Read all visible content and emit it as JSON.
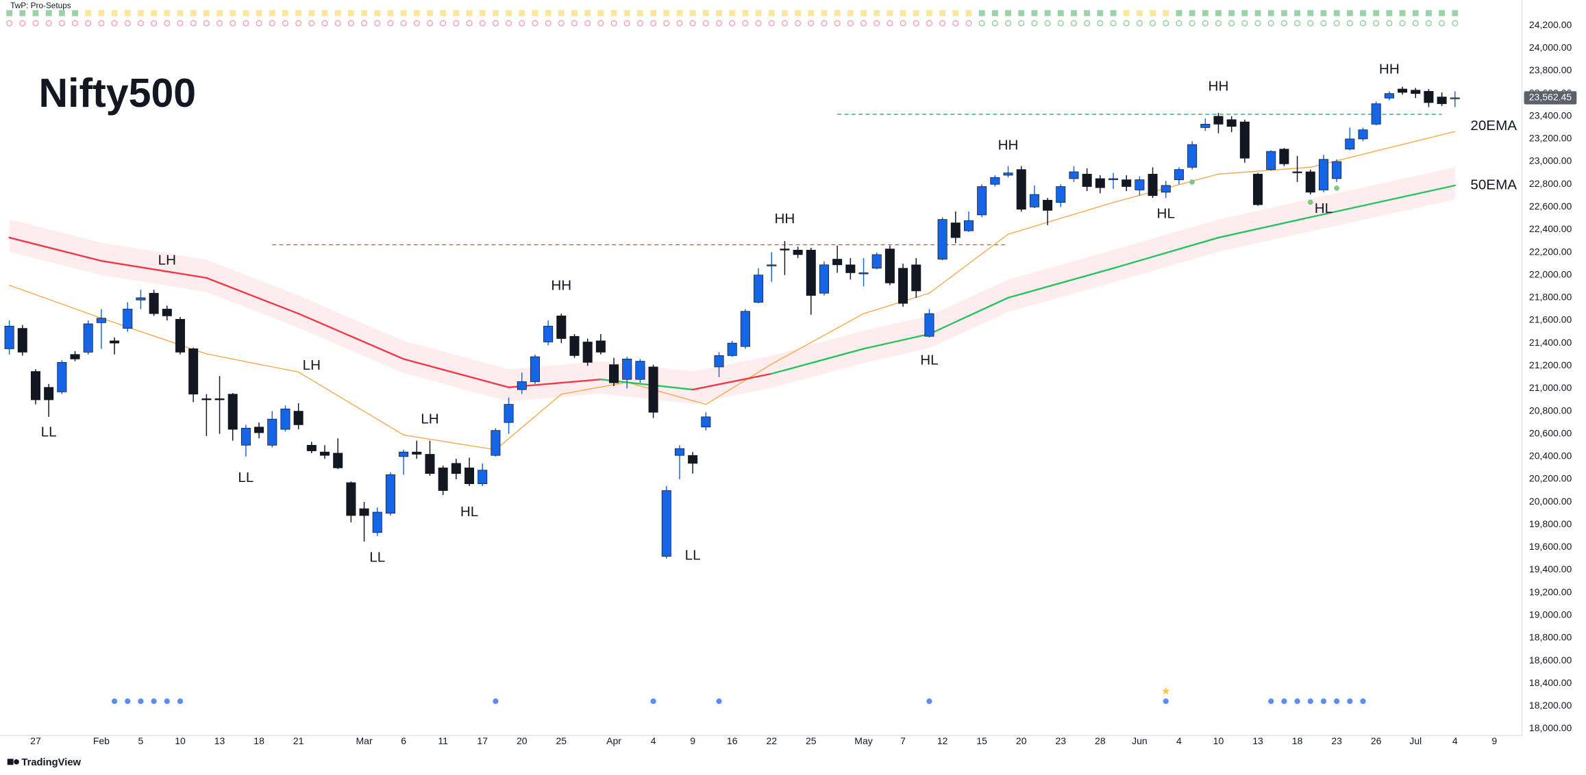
{
  "chart_data": {
    "type": "candlestick",
    "title": "Nifty500",
    "indicator": "TwP: Pro-Setups",
    "footer": "TradingView",
    "up_color": "#1565e6",
    "down_color": "#131722",
    "grid": false,
    "xlim": [
      -0.15,
      115.1
    ],
    "ylim": [
      17940,
      24300
    ],
    "xticks": [
      {
        "value": 2,
        "label": "27"
      },
      {
        "value": 7,
        "label": "Feb"
      },
      {
        "value": 10,
        "label": "5"
      },
      {
        "value": 13,
        "label": "10"
      },
      {
        "value": 16,
        "label": "13"
      },
      {
        "value": 19,
        "label": "18"
      },
      {
        "value": 22,
        "label": "21"
      },
      {
        "value": 27,
        "label": "Mar"
      },
      {
        "value": 30,
        "label": "6"
      },
      {
        "value": 33,
        "label": "11"
      },
      {
        "value": 36,
        "label": "17"
      },
      {
        "value": 39,
        "label": "20"
      },
      {
        "value": 42,
        "label": "25"
      },
      {
        "value": 46,
        "label": "Apr"
      },
      {
        "value": 49,
        "label": "4"
      },
      {
        "value": 52,
        "label": "9"
      },
      {
        "value": 55,
        "label": "16"
      },
      {
        "value": 58,
        "label": "22"
      },
      {
        "value": 61,
        "label": "25"
      },
      {
        "value": 65,
        "label": "May"
      },
      {
        "value": 68,
        "label": "7"
      },
      {
        "value": 71,
        "label": "12"
      },
      {
        "value": 74,
        "label": "15"
      },
      {
        "value": 77,
        "label": "20"
      },
      {
        "value": 80,
        "label": "23"
      },
      {
        "value": 83,
        "label": "28"
      },
      {
        "value": 86,
        "label": "Jun"
      },
      {
        "value": 89,
        "label": "4"
      },
      {
        "value": 92,
        "label": "10"
      },
      {
        "value": 95,
        "label": "13"
      },
      {
        "value": 98,
        "label": "18"
      },
      {
        "value": 101,
        "label": "23"
      },
      {
        "value": 104,
        "label": "26"
      },
      {
        "value": 107,
        "label": "Jul"
      },
      {
        "value": 110,
        "label": "4"
      },
      {
        "value": 113,
        "label": "9"
      }
    ],
    "yticks": [
      {
        "value": 18000,
        "label": "18,000.00"
      },
      {
        "value": 18200,
        "label": "18,200.00"
      },
      {
        "value": 18400,
        "label": "18,400.00"
      },
      {
        "value": 18600,
        "label": "18,600.00"
      },
      {
        "value": 18800,
        "label": "18,800.00"
      },
      {
        "value": 19000,
        "label": "19,000.00"
      },
      {
        "value": 19200,
        "label": "19,200.00"
      },
      {
        "value": 19400,
        "label": "19,400.00"
      },
      {
        "value": 19600,
        "label": "19,600.00"
      },
      {
        "value": 19800,
        "label": "19,800.00"
      },
      {
        "value": 20000,
        "label": "20,000.00"
      },
      {
        "value": 20200,
        "label": "20,200.00"
      },
      {
        "value": 20400,
        "label": "20,400.00"
      },
      {
        "value": 20600,
        "label": "20,600.00"
      },
      {
        "value": 20800,
        "label": "20,800.00"
      },
      {
        "value": 21000,
        "label": "21,000.00"
      },
      {
        "value": 21200,
        "label": "21,200.00"
      },
      {
        "value": 21400,
        "label": "21,400.00"
      },
      {
        "value": 21600,
        "label": "21,600.00"
      },
      {
        "value": 21800,
        "label": "21,800.00"
      },
      {
        "value": 22000,
        "label": "22,000.00"
      },
      {
        "value": 22200,
        "label": "22,200.00"
      },
      {
        "value": 22400,
        "label": "22,400.00"
      },
      {
        "value": 22600,
        "label": "22,600.00"
      },
      {
        "value": 22800,
        "label": "22,800.00"
      },
      {
        "value": 23000,
        "label": "23,000.00"
      },
      {
        "value": 23200,
        "label": "23,200.00"
      },
      {
        "value": 23400,
        "label": "23,400.00"
      },
      {
        "value": 23600,
        "label": "23,600.00"
      },
      {
        "value": 23800,
        "label": "23,800.00"
      },
      {
        "value": 24000,
        "label": "24,000.00"
      },
      {
        "value": 24200,
        "label": "24,200.00"
      }
    ],
    "open": [
      21350,
      21530,
      21150,
      21010,
      20970,
      21300,
      21320,
      21580,
      21420,
      21530,
      21780,
      21840,
      21700,
      21610,
      21350,
      20910,
      20910,
      20950,
      20500,
      20660,
      20500,
      20640,
      20800,
      20500,
      20440,
      20430,
      20170,
      19940,
      19730,
      19900,
      20400,
      20440,
      20420,
      20300,
      20340,
      20300,
      20160,
      20410,
      20700,
      20990,
      21060,
      21410,
      21640,
      21460,
      21410,
      21420,
      21210,
      21080,
      21080,
      21190,
      19520,
      20410,
      20410,
      20660,
      21190,
      21290,
      21370,
      21760,
      22080,
      22230,
      22220,
      22220,
      21840,
      22140,
      22090,
      22010,
      22060,
      22230,
      22060,
      22090,
      21460,
      22140,
      22460,
      22390,
      22530,
      22800,
      22880,
      22930,
      22600,
      22660,
      22640,
      22850,
      22890,
      22850,
      22840,
      22840,
      22750,
      22890,
      22730,
      22840,
      22950,
      23300,
      23400,
      23370,
      23350,
      22890,
      22930,
      23110,
      22910,
      22910,
      22750,
      22850,
      23110,
      23200,
      23330,
      23560,
      23640,
      23630,
      23620,
      23570,
      23560
    ],
    "high": [
      21600,
      21560,
      21170,
      21040,
      21250,
      21330,
      21600,
      21700,
      21450,
      21760,
      21870,
      21870,
      21730,
      21630,
      21360,
      20950,
      21110,
      20960,
      20680,
      20700,
      20800,
      20850,
      20870,
      20530,
      20500,
      20560,
      20180,
      20000,
      19950,
      20260,
      20460,
      20540,
      20540,
      20320,
      20380,
      20390,
      20340,
      20650,
      20920,
      21140,
      21300,
      21600,
      21660,
      21480,
      21440,
      21480,
      21270,
      21280,
      21260,
      21210,
      20140,
      20500,
      20440,
      20790,
      21320,
      21420,
      21700,
      22060,
      22200,
      22300,
      22250,
      22240,
      22120,
      22260,
      22150,
      22150,
      22200,
      22260,
      22100,
      22150,
      21700,
      22510,
      22560,
      22560,
      22800,
      22880,
      22960,
      22960,
      22790,
      22680,
      22800,
      22960,
      22940,
      22880,
      22900,
      22880,
      22870,
      22950,
      22830,
      22950,
      23180,
      23380,
      23430,
      23400,
      23370,
      22900,
      23100,
      23120,
      23050,
      22930,
      23060,
      23020,
      23300,
      23300,
      23530,
      23620,
      23660,
      23650,
      23640,
      23610,
      23620
    ],
    "low": [
      21300,
      21290,
      20860,
      20750,
      20950,
      21240,
      21300,
      21350,
      21300,
      21500,
      21700,
      21640,
      21600,
      21300,
      20880,
      20580,
      20600,
      20540,
      20400,
      20560,
      20480,
      20620,
      20640,
      20430,
      20380,
      20290,
      19820,
      19650,
      19700,
      19880,
      20240,
      20380,
      20230,
      20060,
      20200,
      20140,
      20140,
      20400,
      20600,
      20950,
      21040,
      21380,
      21400,
      21270,
      21200,
      21300,
      21020,
      21000,
      21050,
      20740,
      19500,
      20200,
      20250,
      20630,
      21100,
      21280,
      21350,
      21750,
      21940,
      22000,
      22150,
      21650,
      21820,
      22020,
      21960,
      21900,
      22050,
      21910,
      21720,
      21800,
      21450,
      22130,
      22280,
      22380,
      22510,
      22780,
      22860,
      22560,
      22590,
      22440,
      22600,
      22820,
      22740,
      22720,
      22760,
      22740,
      22700,
      22680,
      22680,
      22800,
      22930,
      23270,
      23250,
      23260,
      22990,
      22610,
      22920,
      22960,
      22820,
      22710,
      22730,
      22820,
      23100,
      23180,
      23320,
      23540,
      23590,
      23560,
      23480,
      23490,
      23480
    ],
    "close": [
      21550,
      21320,
      20900,
      20900,
      21230,
      21260,
      21570,
      21620,
      21400,
      21700,
      21800,
      21660,
      21640,
      21320,
      20950,
      20900,
      20900,
      20640,
      20650,
      20610,
      20730,
      20820,
      20680,
      20450,
      20410,
      20300,
      19880,
      19880,
      19910,
      20240,
      20440,
      20420,
      20250,
      20100,
      20250,
      20160,
      20280,
      20630,
      20860,
      21060,
      21280,
      21550,
      21440,
      21290,
      21230,
      21320,
      21050,
      21260,
      21240,
      20790,
      20100,
      20470,
      20340,
      20750,
      21290,
      21400,
      21680,
      22000,
      22090,
      22220,
      22180,
      21820,
      22090,
      22090,
      22020,
      22020,
      22180,
      21930,
      21750,
      21860,
      21660,
      22490,
      22330,
      22480,
      22780,
      22860,
      22900,
      22580,
      22710,
      22570,
      22780,
      22910,
      22780,
      22770,
      22850,
      22780,
      22840,
      22700,
      22790,
      22930,
      23150,
      23330,
      23330,
      23310,
      23030,
      22620,
      23090,
      22980,
      22910,
      22730,
      23020,
      23000,
      23200,
      23280,
      23510,
      23600,
      23610,
      23600,
      23520,
      23510,
      23562.45
    ],
    "last_price_label": "23,562.45",
    "series": [
      {
        "name": "20EMA",
        "color": "#f7a440",
        "x": [
          0,
          7,
          15,
          22,
          30,
          37,
          42,
          47,
          53,
          58,
          65,
          70,
          76,
          84,
          92,
          99,
          110
        ],
        "values": [
          21910,
          21620,
          21305,
          21145,
          20590,
          20460,
          20950,
          21055,
          20860,
          21215,
          21660,
          21840,
          22360,
          22640,
          22890,
          22950,
          23265
        ]
      },
      {
        "name": "50EMA",
        "color": "#22c55e",
        "color_above": "#f23645",
        "x": [
          0,
          7,
          15,
          22,
          30,
          38,
          45,
          52,
          58,
          65,
          70,
          76,
          84,
          92,
          99,
          110
        ],
        "values": [
          22330,
          22125,
          21975,
          21660,
          21260,
          21010,
          21080,
          20990,
          21130,
          21350,
          21480,
          21800,
          22060,
          22330,
          22510,
          22790
        ]
      }
    ],
    "levels": [
      {
        "value": 22267,
        "x": [
          20,
          76
        ],
        "color": "#f23645"
      },
      {
        "value": 23417,
        "x": [
          63,
          109
        ],
        "color": "#22ab5a"
      }
    ],
    "annotations": [
      {
        "text": "LL",
        "x": 3,
        "y": 20610
      },
      {
        "text": "LH",
        "x": 12,
        "y": 22125
      },
      {
        "text": "LL",
        "x": 18,
        "y": 20209
      },
      {
        "text": "LH",
        "x": 23,
        "y": 21198
      },
      {
        "text": "LL",
        "x": 28,
        "y": 19506
      },
      {
        "text": "LH",
        "x": 32,
        "y": 20726
      },
      {
        "text": "HL",
        "x": 35,
        "y": 19906
      },
      {
        "text": "HH",
        "x": 42,
        "y": 21902
      },
      {
        "text": "LL",
        "x": 52,
        "y": 19523
      },
      {
        "text": "HH",
        "x": 59,
        "y": 22490
      },
      {
        "text": "HL",
        "x": 70,
        "y": 21243
      },
      {
        "text": "HH",
        "x": 76,
        "y": 23140
      },
      {
        "text": "HL",
        "x": 88,
        "y": 22535
      },
      {
        "text": "HH",
        "x": 92,
        "y": 23657
      },
      {
        "text": "HL",
        "x": 100,
        "y": 22580
      },
      {
        "text": "HH",
        "x": 105,
        "y": 23809
      }
    ],
    "pivot_dots": {
      "x": [
        90,
        99,
        101
      ],
      "values": [
        22820,
        22642,
        22766
      ],
      "color": "#81c784"
    },
    "signals": {
      "x": [
        8,
        9,
        10,
        11,
        12,
        13,
        37,
        49,
        54,
        70,
        88,
        96,
        97,
        98,
        99,
        100,
        101,
        102,
        103
      ],
      "color": "#5b8def"
    },
    "star": {
      "x": 88,
      "color": "#f7c948"
    }
  }
}
